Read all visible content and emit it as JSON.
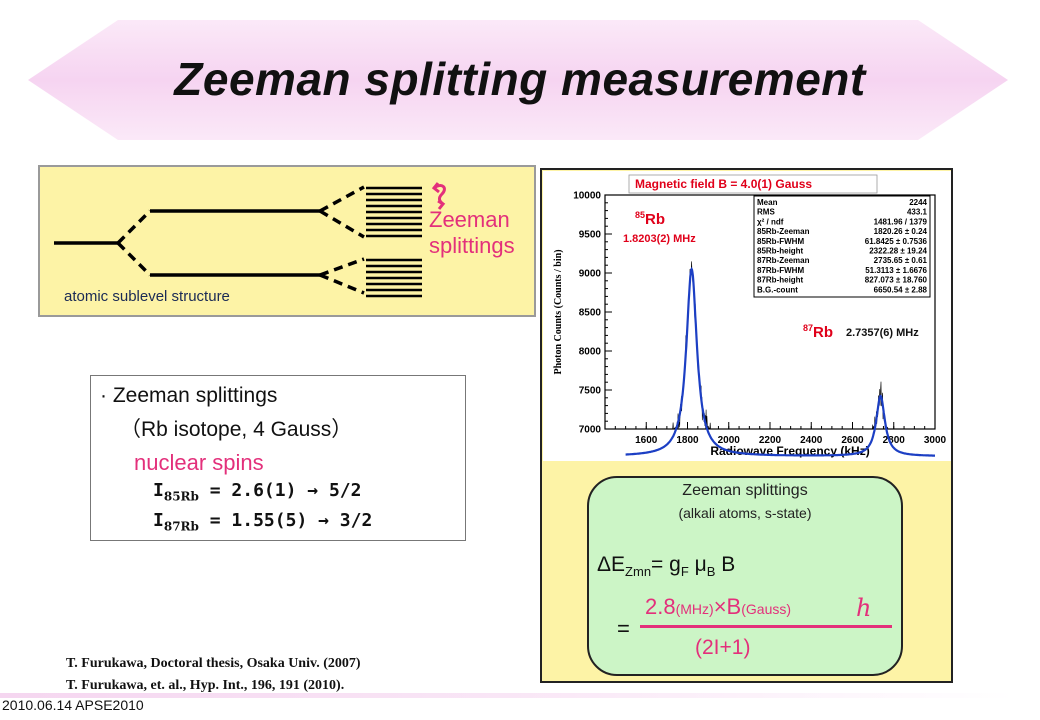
{
  "slide_title": "Zeeman splitting measurement",
  "diagram": {
    "label": "atomic sublevel structure",
    "zeeman_label_line1": "Zeeman",
    "zeeman_label_line2": "splittings"
  },
  "info_box": {
    "line1": "· Zeeman splittings",
    "line2": "（Rb isotope, 4 Gauss）",
    "line3": "nuclear spins",
    "spins": [
      {
        "symbol": "I",
        "isotope": "85Rb",
        "text": " = 2.6(1) → 5/2"
      },
      {
        "symbol": "I",
        "isotope": "87Rb",
        "text": " = 1.55(5) → 3/2"
      }
    ]
  },
  "chart_data": {
    "type": "line",
    "title": "Magnetic field B = 4.0(1) Gauss",
    "xlabel": "Radiowave Frequency (kHz)",
    "ylabel": "Photon Counts (Counts / bin)",
    "xlim": [
      1400,
      3000
    ],
    "ylim": [
      7000,
      10000
    ],
    "xticks": [
      "1600",
      "1800",
      "2000",
      "2200",
      "2400",
      "2600",
      "2800",
      "3000"
    ],
    "yticks": [
      "7000",
      "7500",
      "8000",
      "8500",
      "9000",
      "9500",
      "10000"
    ],
    "peaks": [
      {
        "sup": "85",
        "name": "Rb",
        "freq": "1.8203(2) MHz",
        "center_khz": 1820,
        "height": 9050,
        "fwhm_khz": 62
      },
      {
        "sup": "87",
        "name": "Rb",
        "freq": "2.7357(6) MHz",
        "center_khz": 2736,
        "height": 7420,
        "fwhm_khz": 51
      }
    ],
    "baseline": 6650,
    "stats": [
      [
        "Mean",
        "2244"
      ],
      [
        "RMS",
        "433.1"
      ],
      [
        "χ² / ndf",
        "1481.96 / 1379"
      ],
      [
        "85Rb-Zeeman",
        "1820.26 ± 0.24"
      ],
      [
        "85Rb-FWHM",
        "61.8425 ± 0.7536"
      ],
      [
        "85Rb-height",
        "2322.28 ± 19.24"
      ],
      [
        "87Rb-Zeeman",
        "2735.65 ± 0.61"
      ],
      [
        "87Rb-FWHM",
        "51.3113 ± 1.6676"
      ],
      [
        "87Rb-height",
        "827.073 ± 18.760"
      ],
      [
        "B.G.-count",
        "6650.54 ± 2.88"
      ]
    ],
    "colors": {
      "data": "#000000",
      "fit": "#1c3fc4",
      "annotation": "#e0001a"
    }
  },
  "formula_box": {
    "title": "Zeeman splittings",
    "subtitle": "(alkali atoms, s-state)",
    "eq_lhs": "ΔE",
    "eq_lhs_sub": "Zmn",
    "eq_rhs1": "= g",
    "eq_rhs1_sub": "F",
    "eq_mu": " μ",
    "eq_mu_sub": "B",
    "eq_rhs2": " B",
    "equals": "=",
    "numer_a": "2.8",
    "numer_a_unit": "(MHz)",
    "numer_b": "×B",
    "numer_b_unit": "(Gauss)",
    "hbar": "h",
    "denominator": "(2I+1)"
  },
  "references": [
    "T. Furukawa, Doctoral thesis, Osaka Univ. (2007)",
    "T. Furukawa, et. al., Hyp. Int., 196, 191 (2010)."
  ],
  "footer": "2010.06.14 APSE2010",
  "colors": {
    "banner": "#f9dff5",
    "panel": "#fdf3a6",
    "accent": "#e3307b",
    "formula_bg": "#ccf5c6"
  }
}
